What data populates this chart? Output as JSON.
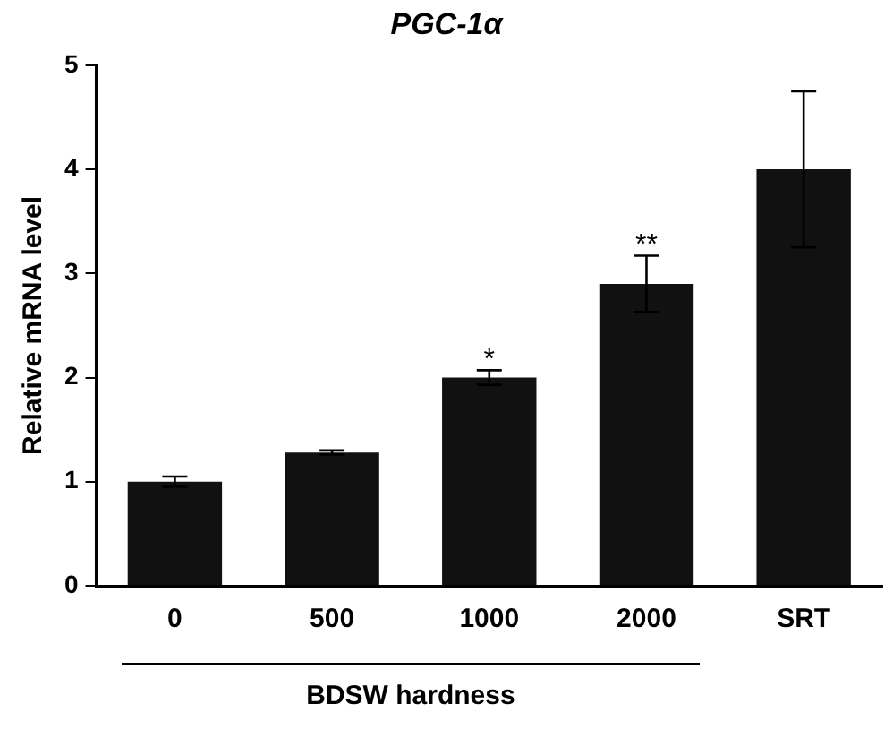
{
  "chart_data": {
    "type": "bar",
    "title": "PGC-1α",
    "xlabel": "BDSW hardness",
    "ylabel": "Relative mRNA level",
    "categories": [
      "0",
      "500",
      "1000",
      "2000",
      "SRT"
    ],
    "values": [
      1.0,
      1.28,
      2.0,
      2.9,
      4.0
    ],
    "errors": [
      0.05,
      0.02,
      0.07,
      0.27,
      0.75
    ],
    "color": "#111111",
    "ylim": [
      0,
      5
    ],
    "yticks": [
      0,
      1,
      2,
      3,
      4,
      5
    ],
    "grid": false,
    "legend": false,
    "annotations": [
      {
        "text": "*",
        "x": "1000",
        "y": 2.1
      },
      {
        "text": "**",
        "x": "2000",
        "y": 3.2
      }
    ]
  }
}
